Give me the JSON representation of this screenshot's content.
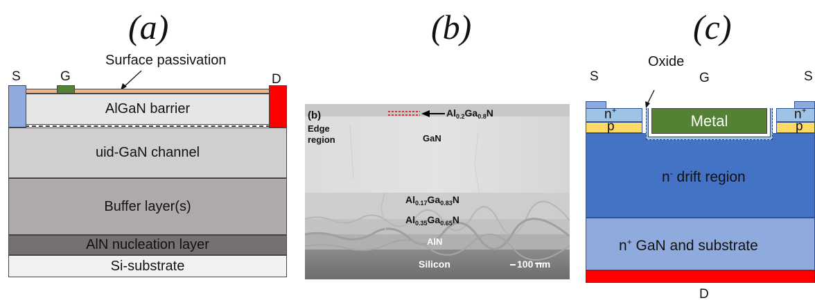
{
  "panels": {
    "a": {
      "letter": "(a)",
      "surface_passivation_label": "Surface passivation",
      "source_label": "S",
      "gate_label": "G",
      "drain_label": "D",
      "layers": {
        "algan_barrier": "AlGaN barrier",
        "uid_gan_channel": "uid-GaN channel",
        "buffer_layers": "Buffer layer(s)",
        "aln_nucleation": "AlN nucleation layer",
        "si_substrate": "Si-substrate"
      },
      "colors": {
        "passivation": "#f4b183",
        "gate": "#548235",
        "source": "#8faadc",
        "drain": "#ff0000",
        "barrier": "#e7e6e6",
        "channel": "#d0cece",
        "buffer": "#aeaaaa",
        "nucleation": "#757171",
        "substrate": "#f2f2f2"
      }
    },
    "b": {
      "letter": "(b)",
      "inset_letter": "(b)",
      "edge_region_line1": "Edge",
      "edge_region_line2": "region",
      "top_label": {
        "prefix": "Al",
        "sub1": "0.2",
        "mid": "Ga",
        "sub2": "0.8",
        "suffix": "N"
      },
      "gan_label": "GaN",
      "layer1": {
        "prefix": "Al",
        "sub1": "0.17",
        "mid": "Ga",
        "sub2": "0.83",
        "suffix": "N"
      },
      "layer2": {
        "prefix": "Al",
        "sub1": "0.35",
        "mid": "Ga",
        "sub2": "0.65",
        "suffix": "N"
      },
      "aln_label": "AlN",
      "silicon_label": "Silicon",
      "scale_bar": "100 nm"
    },
    "c": {
      "letter": "(c)",
      "oxide_label": "Oxide",
      "source_label": "S",
      "source_label_right": "S",
      "gate_label": "G",
      "drain_label": "D",
      "metal_label": "Metal",
      "n_plus_base": "n",
      "plus_sup": "+",
      "p_label": "p",
      "drift_base": "n",
      "minus_sup": "-",
      "drift_text": " drift region",
      "substrate_text": " GaN and substrate",
      "colors": {
        "source": "#8faadc",
        "n_plus": "#9dc3e6",
        "p": "#ffd966",
        "drift": "#4472c4",
        "substrate": "#8faadc",
        "metal": "#548235",
        "drain": "#ff0000"
      }
    }
  }
}
